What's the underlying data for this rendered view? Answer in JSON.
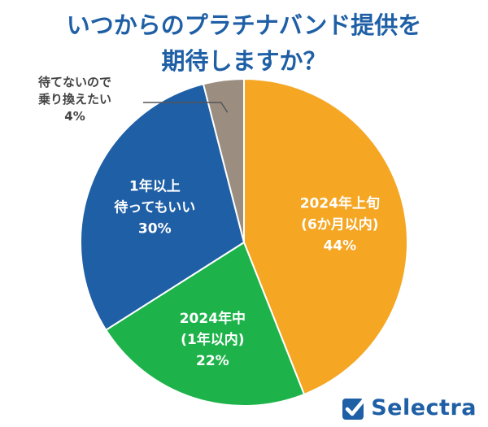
{
  "title": {
    "line1": "いつからのプラチナバンド提供を",
    "line2": "期待しますか？"
  },
  "brand": {
    "name": "Selectra",
    "color": "#1f5fa6"
  },
  "chart_data": {
    "type": "pie",
    "title": "いつからのプラチナバンド提供を期待しますか？",
    "start": "12 o'clock, clockwise",
    "slices": [
      {
        "label_lines": [
          "2024年上旬",
          "(6か月以内)"
        ],
        "value": 44,
        "value_text": "44%",
        "color": "#f5a623",
        "label_placement": "inside"
      },
      {
        "label_lines": [
          "2024年中",
          "(1年以内)"
        ],
        "value": 22,
        "value_text": "22%",
        "color": "#1db34a",
        "label_placement": "inside"
      },
      {
        "label_lines": [
          "1年以上",
          "待ってもいい"
        ],
        "value": 30,
        "value_text": "30%",
        "color": "#1f5fa6",
        "label_placement": "inside"
      },
      {
        "label_lines": [
          "待てないので",
          "乗り換えたい"
        ],
        "value": 4,
        "value_text": "4%",
        "color": "#9b8e80",
        "label_placement": "outside-top-left"
      }
    ]
  }
}
